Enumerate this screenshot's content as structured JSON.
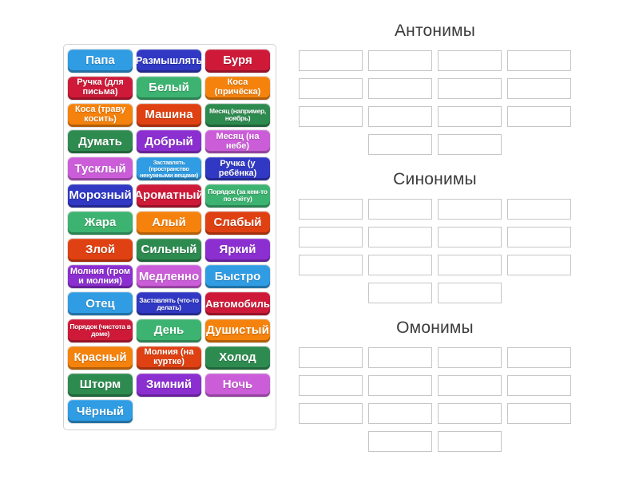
{
  "page": {
    "background": "#ffffff"
  },
  "palette": {
    "blue": "#2f9ce3",
    "navy": "#3038c4",
    "crimson": "#ce1a38",
    "vermillion": "#e04112",
    "orange": "#f5820c",
    "seagreen": "#3db371",
    "green": "#2e8b50",
    "purple": "#8c2fd1",
    "orchid": "#cb5dd9",
    "slot_border": "#c6c6c6",
    "panel_border": "#d2d2d2",
    "title_text": "#3b3b3b",
    "tile_text": "#ffffff"
  },
  "tile_panel": {
    "tiles": [
      {
        "label": "Папа",
        "color": "blue",
        "size": "lg"
      },
      {
        "label": "Размышлять",
        "color": "navy",
        "size": "md"
      },
      {
        "label": "Буря",
        "color": "crimson",
        "size": "lg"
      },
      {
        "label": "Ручка (для письма)",
        "color": "crimson",
        "size": "sm"
      },
      {
        "label": "Белый",
        "color": "seagreen",
        "size": "lg"
      },
      {
        "label": "Коса (причёска)",
        "color": "orange",
        "size": "sm"
      },
      {
        "label": "Коса (траву косить)",
        "color": "orange",
        "size": "sm"
      },
      {
        "label": "Машина",
        "color": "vermillion",
        "size": "lg"
      },
      {
        "label": "Месяц (например, ноябрь)",
        "color": "green",
        "size": "xs"
      },
      {
        "label": "Думать",
        "color": "green",
        "size": "lg"
      },
      {
        "label": "Добрый",
        "color": "purple",
        "size": "lg"
      },
      {
        "label": "Месяц (на небе)",
        "color": "orchid",
        "size": "sm"
      },
      {
        "label": "Тусклый",
        "color": "orchid",
        "size": "lg"
      },
      {
        "label": "Заставлять (пространство ненужными вещами)",
        "color": "blue",
        "size": "xxs"
      },
      {
        "label": "Ручка (у ребёнка)",
        "color": "navy",
        "size": "sm"
      },
      {
        "label": "Морозный",
        "color": "navy",
        "size": "lg"
      },
      {
        "label": "Ароматный",
        "color": "crimson",
        "size": "lg"
      },
      {
        "label": "Порядок (за кем-то по счёту)",
        "color": "seagreen",
        "size": "xs"
      },
      {
        "label": "Жара",
        "color": "seagreen",
        "size": "lg"
      },
      {
        "label": "Алый",
        "color": "orange",
        "size": "lg"
      },
      {
        "label": "Слабый",
        "color": "vermillion",
        "size": "lg"
      },
      {
        "label": "Злой",
        "color": "vermillion",
        "size": "lg"
      },
      {
        "label": "Сильный",
        "color": "green",
        "size": "lg"
      },
      {
        "label": "Яркий",
        "color": "purple",
        "size": "lg"
      },
      {
        "label": "Молния (гром и молния)",
        "color": "purple",
        "size": "sm"
      },
      {
        "label": "Медленно",
        "color": "orchid",
        "size": "lg"
      },
      {
        "label": "Быстро",
        "color": "blue",
        "size": "lg"
      },
      {
        "label": "Отец",
        "color": "blue",
        "size": "lg"
      },
      {
        "label": "Заставлять (что-то делать)",
        "color": "navy",
        "size": "xs"
      },
      {
        "label": "Автомобиль",
        "color": "crimson",
        "size": "md"
      },
      {
        "label": "Порядок (чистота в доме)",
        "color": "crimson",
        "size": "xs"
      },
      {
        "label": "День",
        "color": "seagreen",
        "size": "lg"
      },
      {
        "label": "Душистый",
        "color": "orange",
        "size": "lg"
      },
      {
        "label": "Красный",
        "color": "orange",
        "size": "lg"
      },
      {
        "label": "Молния (на куртке)",
        "color": "vermillion",
        "size": "sm"
      },
      {
        "label": "Холод",
        "color": "green",
        "size": "lg"
      },
      {
        "label": "Шторм",
        "color": "green",
        "size": "lg"
      },
      {
        "label": "Зимний",
        "color": "purple",
        "size": "lg"
      },
      {
        "label": "Ночь",
        "color": "orchid",
        "size": "lg"
      },
      {
        "label": "Чёрный",
        "color": "blue",
        "size": "lg"
      }
    ]
  },
  "groups": [
    {
      "title": "Антонимы",
      "slot_rows": [
        4,
        4,
        4,
        2
      ]
    },
    {
      "title": "Синонимы",
      "slot_rows": [
        4,
        4,
        4,
        2
      ]
    },
    {
      "title": "Омонимы",
      "slot_rows": [
        4,
        4,
        4,
        2
      ]
    }
  ]
}
